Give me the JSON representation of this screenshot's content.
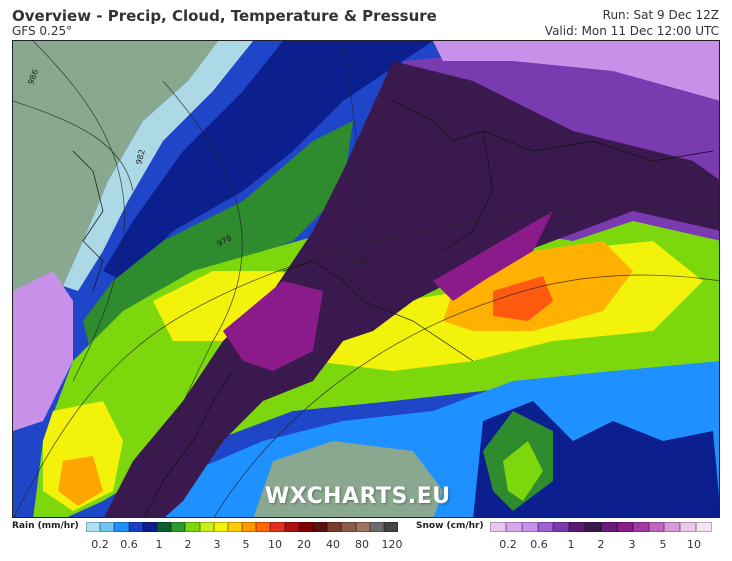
{
  "header": {
    "title": "Overview - Precip, Cloud, Temperature & Pressure",
    "model": "GFS 0.25°",
    "run": "Run: Sat 9 Dec 12Z",
    "valid": "Valid: Mon 11 Dec 12:00 UTC"
  },
  "map": {
    "isobar_labels": [
      "986",
      "982",
      "978",
      "970",
      "974"
    ],
    "watermark": "WXCHARTS.EU",
    "colors": {
      "cloud": "#8aa88f",
      "rain_light": "#add8e6",
      "rain_blue": "#1e90ff",
      "rain_navy": "#0b1f8f",
      "rain_green": "#2e8b2e",
      "rain_lime": "#7cd80c",
      "rain_yellow": "#f2f20a",
      "rain_orange": "#ff9900",
      "snow_purple": "#5a1a6e",
      "snow_dark": "#3a1a4e",
      "snow_magenta": "#8b1a8b",
      "snow_lavender": "#c890e8"
    }
  },
  "legend": {
    "rain": {
      "label": "Rain (mm/hr)",
      "ticks": [
        "0.2",
        "0.6",
        "1",
        "2",
        "3",
        "5",
        "10",
        "20",
        "40",
        "80",
        "120"
      ],
      "colors": [
        "#aee0f0",
        "#6ec6f0",
        "#1e90ff",
        "#1c3fc8",
        "#0b1f8f",
        "#0b5e2e",
        "#2e9a2e",
        "#7cd80c",
        "#c8ef1a",
        "#f2f20a",
        "#ffcc00",
        "#ff9900",
        "#ff6600",
        "#e0301e",
        "#b01010",
        "#800000",
        "#5a1010",
        "#7a3c2c",
        "#8b5a4a",
        "#9c7460",
        "#6c6c6c",
        "#444444"
      ]
    },
    "snow": {
      "label": "Snow (cm/hr)",
      "ticks": [
        "0.2",
        "0.6",
        "1",
        "2",
        "3",
        "5",
        "10"
      ],
      "colors": [
        "#e8c8f0",
        "#d8a8ec",
        "#c890e8",
        "#a060d0",
        "#7a3ab0",
        "#5a1a6e",
        "#3a1a4e",
        "#6a1a7a",
        "#8b1a8b",
        "#a03aa0",
        "#c068c0",
        "#d898d8",
        "#ecc8ec",
        "#f4e4f4"
      ]
    }
  }
}
